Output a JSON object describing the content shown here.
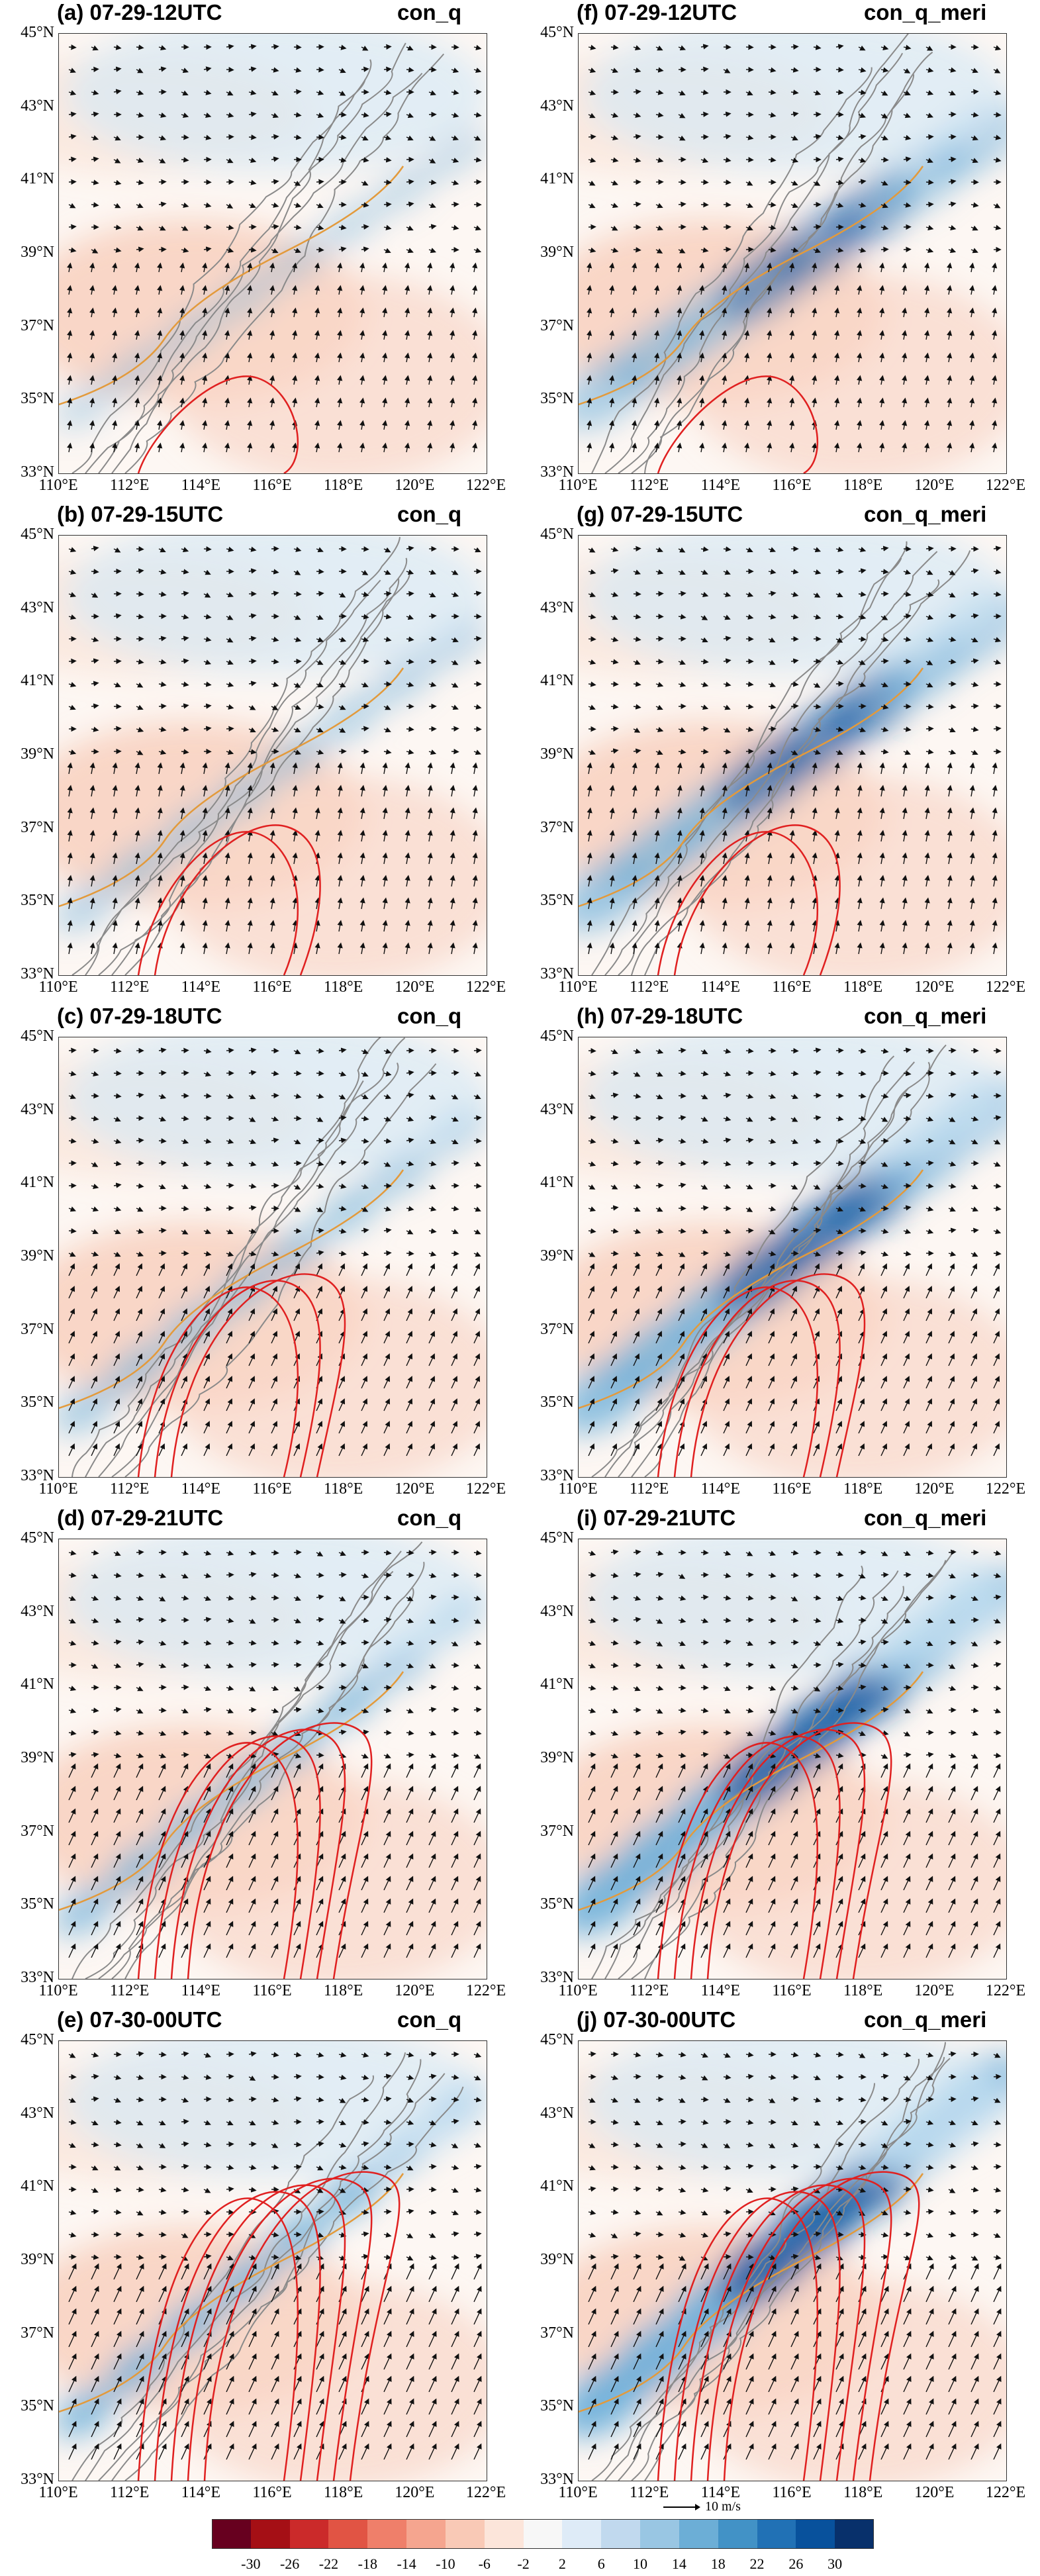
{
  "panels": [
    {
      "id": "a",
      "title": "(a) 07-29-12UTC",
      "variable": "con_q",
      "col": 0,
      "row": 0
    },
    {
      "id": "f",
      "title": "(f) 07-29-12UTC",
      "variable": "con_q_meri",
      "col": 1,
      "row": 0
    },
    {
      "id": "b",
      "title": "(b) 07-29-15UTC",
      "variable": "con_q",
      "col": 0,
      "row": 1
    },
    {
      "id": "g",
      "title": "(g) 07-29-15UTC",
      "variable": "con_q_meri",
      "col": 1,
      "row": 1
    },
    {
      "id": "c",
      "title": "(c) 07-29-18UTC",
      "variable": "con_q",
      "col": 0,
      "row": 2
    },
    {
      "id": "h",
      "title": "(h) 07-29-18UTC",
      "variable": "con_q_meri",
      "col": 1,
      "row": 2
    },
    {
      "id": "d",
      "title": "(d) 07-29-21UTC",
      "variable": "con_q",
      "col": 0,
      "row": 3
    },
    {
      "id": "i",
      "title": "(i) 07-29-21UTC",
      "variable": "con_q_meri",
      "col": 1,
      "row": 3
    },
    {
      "id": "e",
      "title": "(e) 07-30-00UTC",
      "variable": "con_q",
      "col": 0,
      "row": 4
    },
    {
      "id": "j",
      "title": "(j) 07-30-00UTC",
      "variable": "con_q_meri",
      "col": 1,
      "row": 4
    }
  ],
  "latitude_labels": [
    "45°N",
    "43°N",
    "41°N",
    "39°N",
    "37°N",
    "35°N",
    "33°N"
  ],
  "longitude_labels": [
    "110°E",
    "112°E",
    "114°E",
    "116°E",
    "118°E",
    "120°E",
    "122°E"
  ],
  "reference_vector": {
    "label": "10 m/s"
  },
  "colorbar": {
    "ticks": [
      "-30",
      "-26",
      "-22",
      "-18",
      "-14",
      "-10",
      "-6",
      "-2",
      "2",
      "6",
      "10",
      "14",
      "18",
      "22",
      "26",
      "30"
    ],
    "colors": [
      "#67001f",
      "#a50f15",
      "#cb2a2a",
      "#e15444",
      "#ef7f6a",
      "#f5a58f",
      "#f9c9b6",
      "#fce5da",
      "#f7f7f7",
      "#deebf7",
      "#c1d9ee",
      "#99c6e3",
      "#6caed6",
      "#4292c6",
      "#2171b5",
      "#08519c",
      "#08306b"
    ]
  },
  "colors": {
    "negative_shading": "#f6c8b4",
    "positive_shading": "#7db7dc",
    "strong_positive": "#1f63a8",
    "red_contour": "#e02020",
    "terrain_contour": "#808080",
    "orange_contour": "#e39a3b",
    "vector": "#111111"
  }
}
